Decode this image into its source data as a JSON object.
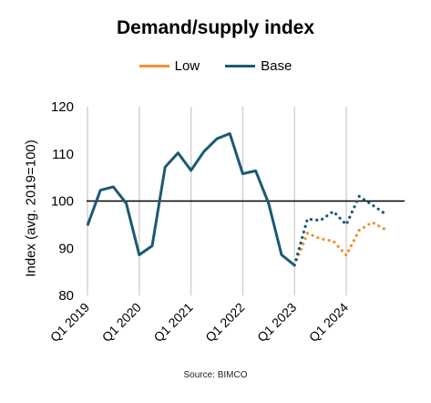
{
  "chart_data": {
    "type": "line",
    "title": "Demand/supply index",
    "ylabel": "Index (avg. 2019=100)",
    "xlabel": "",
    "ylim": [
      80,
      120
    ],
    "yticks": [
      80,
      90,
      100,
      110,
      120
    ],
    "xtick_labels": [
      "Q1 2019",
      "Q1 2020",
      "Q1 2021",
      "Q1 2022",
      "Q1 2023",
      "Q1 2024"
    ],
    "reference_line": 100,
    "grid": "vertical",
    "legend": "top-center",
    "source": "Source: BIMCO",
    "x": [
      "Q1 2019",
      "Q2 2019",
      "Q3 2019",
      "Q4 2019",
      "Q1 2020",
      "Q2 2020",
      "Q3 2020",
      "Q4 2020",
      "Q1 2021",
      "Q2 2021",
      "Q3 2021",
      "Q4 2021",
      "Q1 2022",
      "Q2 2022",
      "Q3 2022",
      "Q4 2022",
      "Q1 2023",
      "Q2 2023",
      "Q3 2023",
      "Q4 2023",
      "Q1 2024",
      "Q2 2024",
      "Q3 2024",
      "Q4 2024"
    ],
    "historical": {
      "values": [
        94.8,
        102.3,
        103.0,
        99.5,
        88.6,
        90.5,
        107.2,
        110.2,
        106.5,
        110.5,
        113.2,
        114.3,
        105.8,
        106.4,
        99.5,
        88.6,
        86.4
      ]
    },
    "series": [
      {
        "name": "Low",
        "color": "#f0922e",
        "values": [
          null,
          null,
          null,
          null,
          null,
          null,
          null,
          null,
          null,
          null,
          null,
          null,
          null,
          null,
          null,
          null,
          86.4,
          93.2,
          92.0,
          91.5,
          88.5,
          93.8,
          95.5,
          94.0
        ]
      },
      {
        "name": "Base",
        "color": "#1a5a73",
        "values": [
          null,
          null,
          null,
          null,
          null,
          null,
          null,
          null,
          null,
          null,
          null,
          null,
          null,
          null,
          null,
          null,
          86.4,
          96.2,
          95.9,
          97.8,
          95.0,
          101.0,
          99.2,
          97.3
        ]
      }
    ]
  }
}
